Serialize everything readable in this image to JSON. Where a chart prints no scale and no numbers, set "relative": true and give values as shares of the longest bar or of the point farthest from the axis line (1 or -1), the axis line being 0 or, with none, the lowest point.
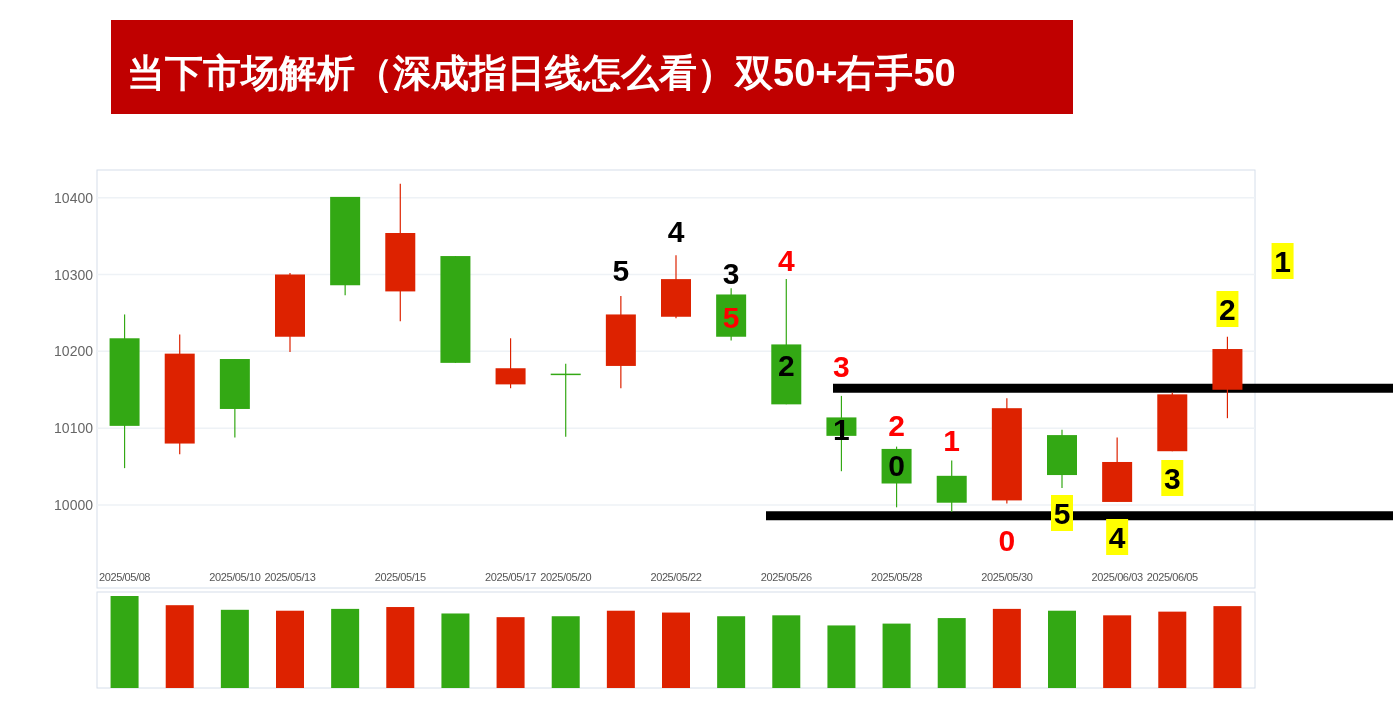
{
  "chart_data": [
    {
      "type": "candlestick",
      "title": "当下市场解析（深成指日线怎么看）双50+右手50",
      "categories": [
        "2025/05/08",
        null,
        "2025/05/10",
        "2025/05/13",
        null,
        "2025/05/15",
        null,
        "2025/05/17",
        "2025/05/20",
        null,
        "2025/05/22",
        null,
        "2025/05/26",
        null,
        "2025/05/28",
        null,
        "2025/05/30",
        null,
        "2025/06/03",
        "2025/06/05",
        null
      ],
      "ohlc": [
        [
          10217,
          10248,
          10048,
          10103
        ],
        [
          10080,
          10222,
          10066,
          10197
        ],
        [
          10190,
          10190,
          10088,
          10125
        ],
        [
          10219,
          10302,
          10199,
          10300
        ],
        [
          10401,
          10401,
          10273,
          10286
        ],
        [
          10278,
          10418,
          10239,
          10354
        ],
        [
          10324,
          10324,
          10185,
          10185
        ],
        [
          10157,
          10217,
          10152,
          10178
        ],
        [
          10170,
          10184,
          10089,
          10170
        ],
        [
          10181,
          10272,
          10152,
          10248
        ],
        [
          10245,
          10325,
          10243,
          10294
        ],
        [
          10274,
          10282,
          10214,
          10219
        ],
        [
          10209,
          10294,
          10131,
          10131
        ],
        [
          10114,
          10142,
          10044,
          10090
        ],
        [
          10073,
          10076,
          9997,
          10028
        ],
        [
          10038,
          10058,
          9991,
          10003
        ],
        [
          10006,
          10139,
          10002,
          10126
        ],
        [
          10091,
          10098,
          10022,
          10039
        ],
        [
          10004,
          10088,
          10004,
          10056
        ],
        [
          10070,
          10146,
          10070,
          10144
        ],
        [
          10150,
          10219,
          10113,
          10203
        ]
      ],
      "colors": [
        "#33a814",
        "#dd2200",
        "#33a814",
        "#dd2200",
        "#33a814",
        "#dd2200",
        "#33a814",
        "#dd2200",
        "#33a814",
        "#dd2200",
        "#dd2200",
        "#33a814",
        "#33a814",
        "#33a814",
        "#33a814",
        "#33a814",
        "#dd2200",
        "#33a814",
        "#dd2200",
        "#dd2200",
        "#dd2200"
      ],
      "ylim": [
        9892,
        10436
      ],
      "yticks": [
        10000,
        10100,
        10200,
        10300,
        10400
      ],
      "grid": "y",
      "ref_lines": [
        {
          "axis": "y",
          "value": 10152,
          "color": "#000000"
        },
        {
          "axis": "y",
          "value": 9986,
          "color": "#000000"
        }
      ],
      "annotations": [
        "5",
        "4",
        "3",
        "5",
        "4",
        "2",
        "3",
        "1",
        "2",
        "0",
        "1",
        "0",
        "5",
        "4",
        "3",
        "2",
        "1"
      ]
    },
    {
      "type": "bar",
      "relative": true,
      "categories": [
        null,
        null,
        null,
        null,
        null,
        null,
        null,
        null,
        null,
        null,
        null,
        null,
        null,
        null,
        null,
        null,
        null,
        null,
        null,
        null,
        null
      ],
      "values": [
        1,
        0.9,
        0.85,
        0.84,
        0.86,
        0.88,
        0.81,
        0.77,
        0.78,
        0.84,
        0.82,
        0.78,
        0.79,
        0.68,
        0.7,
        0.76,
        0.86,
        0.84,
        0.79,
        0.83,
        0.89
      ],
      "colors": [
        "#33a814",
        "#dd2200",
        "#33a814",
        "#dd2200",
        "#33a814",
        "#dd2200",
        "#33a814",
        "#dd2200",
        "#33a814",
        "#dd2200",
        "#dd2200",
        "#33a814",
        "#33a814",
        "#33a814",
        "#33a814",
        "#33a814",
        "#dd2200",
        "#33a814",
        "#dd2200",
        "#dd2200",
        "#dd2200"
      ]
    }
  ]
}
